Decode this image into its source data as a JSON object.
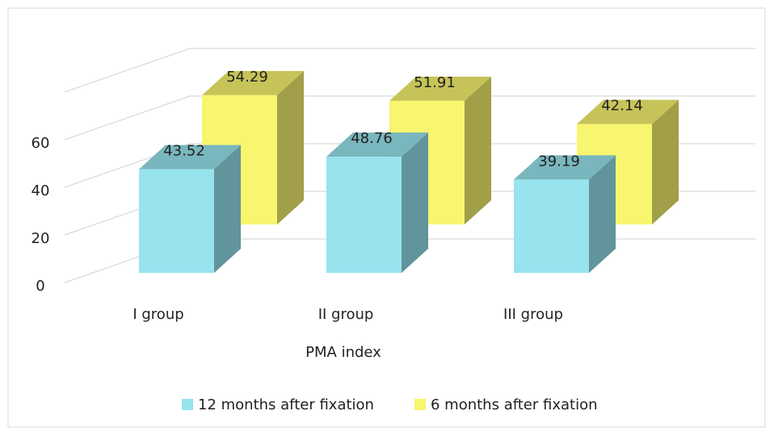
{
  "chart_data": {
    "type": "bar3d",
    "x_label": "PMA index",
    "categories": [
      "I group",
      "II group",
      "III group"
    ],
    "series": [
      {
        "name": "12 months after fixation",
        "color": "#97e3ee",
        "values": [
          43.52,
          48.76,
          39.19
        ]
      },
      {
        "name": "6 months after fixation",
        "color": "#f8f56e",
        "values": [
          54.29,
          51.91,
          42.14
        ]
      }
    ],
    "ylim": [
      0,
      80
    ],
    "yticks": [
      0,
      20,
      40,
      60
    ],
    "grid": true,
    "legend": "bottom"
  }
}
